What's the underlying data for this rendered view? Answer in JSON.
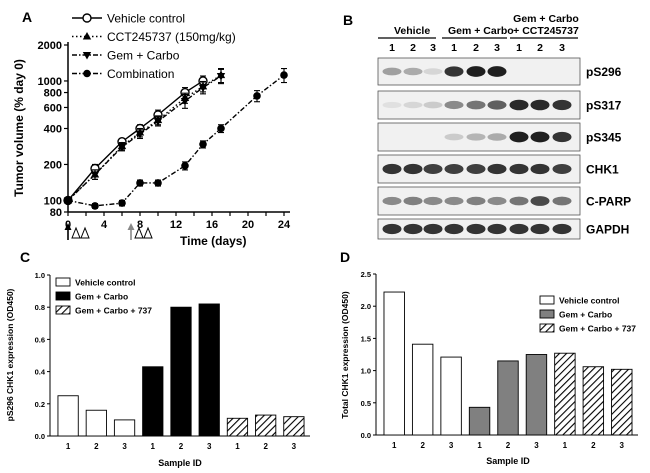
{
  "panels": {
    "a": {
      "letter": "A"
    },
    "b": {
      "letter": "B"
    },
    "c": {
      "letter": "C"
    },
    "d": {
      "letter": "D"
    }
  },
  "blot": {
    "groups": [
      {
        "label": "Vehicle",
        "lanes": [
          "1",
          "2",
          "3"
        ]
      },
      {
        "label": "Gem + Carbo",
        "lanes": [
          "1",
          "2",
          "3"
        ]
      },
      {
        "label": "Gem + Carbo\n+ CCT245737",
        "lanes": [
          "1",
          "2",
          "3"
        ]
      }
    ],
    "group3_line1": "Gem + Carbo",
    "group3_line2": "+ CCT245737",
    "rows": [
      {
        "label": "pS296",
        "intensity": [
          0.35,
          0.3,
          0.1,
          0.85,
          0.95,
          0.95,
          0.0,
          0.0,
          0.0
        ]
      },
      {
        "label": "pS317",
        "intensity": [
          0.05,
          0.1,
          0.15,
          0.45,
          0.55,
          0.65,
          0.9,
          0.9,
          0.85
        ]
      },
      {
        "label": "pS345",
        "intensity": [
          0.0,
          0.0,
          0.0,
          0.15,
          0.25,
          0.3,
          0.95,
          0.95,
          0.85
        ]
      },
      {
        "label": "CHK1",
        "intensity": [
          0.85,
          0.85,
          0.8,
          0.8,
          0.8,
          0.85,
          0.85,
          0.85,
          0.8
        ]
      },
      {
        "label": "C-PARP",
        "intensity": [
          0.45,
          0.5,
          0.45,
          0.45,
          0.5,
          0.45,
          0.55,
          0.75,
          0.55
        ]
      },
      {
        "label": "GAPDH",
        "intensity": [
          0.85,
          0.85,
          0.85,
          0.85,
          0.85,
          0.85,
          0.85,
          0.85,
          0.85
        ]
      }
    ]
  },
  "chart_data": [
    {
      "panel": "A",
      "type": "line",
      "xlabel": "Time (days)",
      "ylabel": "Tumor volume (% day 0)",
      "xlim": [
        0,
        24
      ],
      "ylim": [
        80,
        2000
      ],
      "yscale": "log",
      "xticks": [
        0,
        2,
        4,
        6,
        8,
        10,
        12,
        14,
        16,
        18,
        20,
        22,
        24
      ],
      "yticks": [
        80,
        100,
        200,
        400,
        600,
        800,
        1000,
        2000
      ],
      "legend": "top-left",
      "series": [
        {
          "name": "Vehicle control",
          "marker": "open-circle",
          "line": "solid",
          "x": [
            0,
            3,
            6,
            8,
            10,
            13,
            15
          ],
          "y": [
            100,
            185,
            310,
            400,
            520,
            800,
            1000
          ],
          "err": [
            5,
            15,
            20,
            30,
            50,
            80,
            100
          ]
        },
        {
          "name": "CCT245737 (150mg/kg)",
          "marker": "triangle-up",
          "line": "dotted",
          "x": [
            0,
            3,
            6,
            8,
            10,
            13,
            15,
            17
          ],
          "y": [
            100,
            165,
            285,
            370,
            470,
            720,
            900,
            1120
          ],
          "err": [
            5,
            15,
            20,
            30,
            40,
            70,
            90,
            150
          ]
        },
        {
          "name": "Gem + Carbo",
          "marker": "triangle-down",
          "line": "dash-dot",
          "x": [
            0,
            3,
            6,
            8,
            10,
            13,
            15,
            17
          ],
          "y": [
            100,
            165,
            280,
            360,
            460,
            680,
            880,
            1100
          ],
          "err": [
            5,
            15,
            20,
            30,
            40,
            90,
            100,
            150
          ]
        },
        {
          "name": "Combination",
          "marker": "filled-circle",
          "line": "dash-dot",
          "x": [
            0,
            3,
            6,
            8,
            10,
            13,
            15,
            17,
            21,
            24
          ],
          "y": [
            100,
            90,
            95,
            140,
            140,
            195,
            295,
            400,
            750,
            1120
          ],
          "err": [
            5,
            4,
            5,
            8,
            8,
            15,
            20,
            30,
            80,
            150
          ]
        }
      ],
      "dosing": {
        "black_arrow_day": 0,
        "gray_arrow_day": 7
      }
    },
    {
      "panel": "C",
      "type": "bar",
      "xlabel": "Sample ID",
      "ylabel": "pS296 CHK1 expression (OD450)",
      "ylim": [
        0,
        1.0
      ],
      "yticks": [
        0.0,
        0.2,
        0.4,
        0.6,
        0.8,
        1.0
      ],
      "categories": [
        "1",
        "2",
        "3",
        "1",
        "2",
        "3",
        "1",
        "2",
        "3"
      ],
      "values": [
        0.25,
        0.16,
        0.1,
        0.43,
        0.8,
        0.82,
        0.11,
        0.13,
        0.12
      ],
      "groups": [
        "Vehicle control",
        "Vehicle control",
        "Vehicle control",
        "Gem + Carbo",
        "Gem + Carbo",
        "Gem + Carbo",
        "Gem + Carbo + 737",
        "Gem + Carbo + 737",
        "Gem + Carbo + 737"
      ],
      "legend_labels": [
        "Vehicle control",
        "Gem + Carbo",
        "Gem + Carbo + 737"
      ],
      "legend": "top-left"
    },
    {
      "panel": "D",
      "type": "bar",
      "xlabel": "Sample ID",
      "ylabel": "Total CHK1 expression (OD450)",
      "ylim": [
        0,
        2.5
      ],
      "yticks": [
        0.0,
        0.5,
        1.0,
        1.5,
        2.0,
        2.5
      ],
      "categories": [
        "1",
        "2",
        "3",
        "1",
        "2",
        "3",
        "1",
        "2",
        "3"
      ],
      "values": [
        2.22,
        1.41,
        1.21,
        0.43,
        1.15,
        1.25,
        1.27,
        1.06,
        1.02
      ],
      "groups": [
        "Vehicle control",
        "Vehicle control",
        "Vehicle control",
        "Gem + Carbo",
        "Gem + Carbo",
        "Gem + Carbo",
        "Gem + Carbo + 737",
        "Gem + Carbo + 737",
        "Gem + Carbo + 737"
      ],
      "legend_labels": [
        "Vehicle control",
        "Gem + Carbo",
        "Gem + Carbo + 737"
      ],
      "legend": "top-right"
    }
  ]
}
